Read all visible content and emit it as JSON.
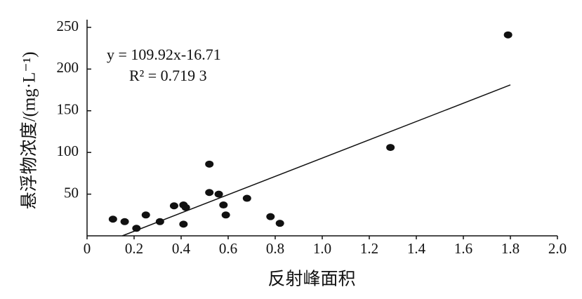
{
  "chart_data": {
    "type": "scatter",
    "x_label": "反射峰面积",
    "y_label": "悬浮物浓度/(mg·L⁻¹)",
    "annotations": [
      "y = 109.92x-16.71",
      "R² = 0.719 3"
    ],
    "x": [
      0.11,
      0.16,
      0.21,
      0.25,
      0.31,
      0.37,
      0.41,
      0.41,
      0.42,
      0.52,
      0.52,
      0.56,
      0.58,
      0.59,
      0.68,
      0.78,
      0.82,
      1.29,
      1.79
    ],
    "values": [
      20,
      17,
      9,
      25,
      17,
      36,
      37,
      14,
      34,
      86,
      52,
      50,
      37,
      25,
      45,
      23,
      15,
      106,
      241
    ],
    "color": "#111111",
    "trendline": {
      "x": [
        0.15,
        1.8
      ],
      "y": [
        0,
        181
      ]
    },
    "xlim": [
      0,
      2.0
    ],
    "ylim": [
      0,
      250
    ],
    "xticks": [
      0,
      0.2,
      0.4,
      0.6,
      0.8,
      {
        "value": 1.0,
        "label": "1.0"
      },
      1.2,
      1.4,
      1.6,
      1.8,
      {
        "value": 2.0,
        "label": "2.0"
      }
    ],
    "yticks": [
      50,
      100,
      150,
      200,
      250
    ]
  }
}
